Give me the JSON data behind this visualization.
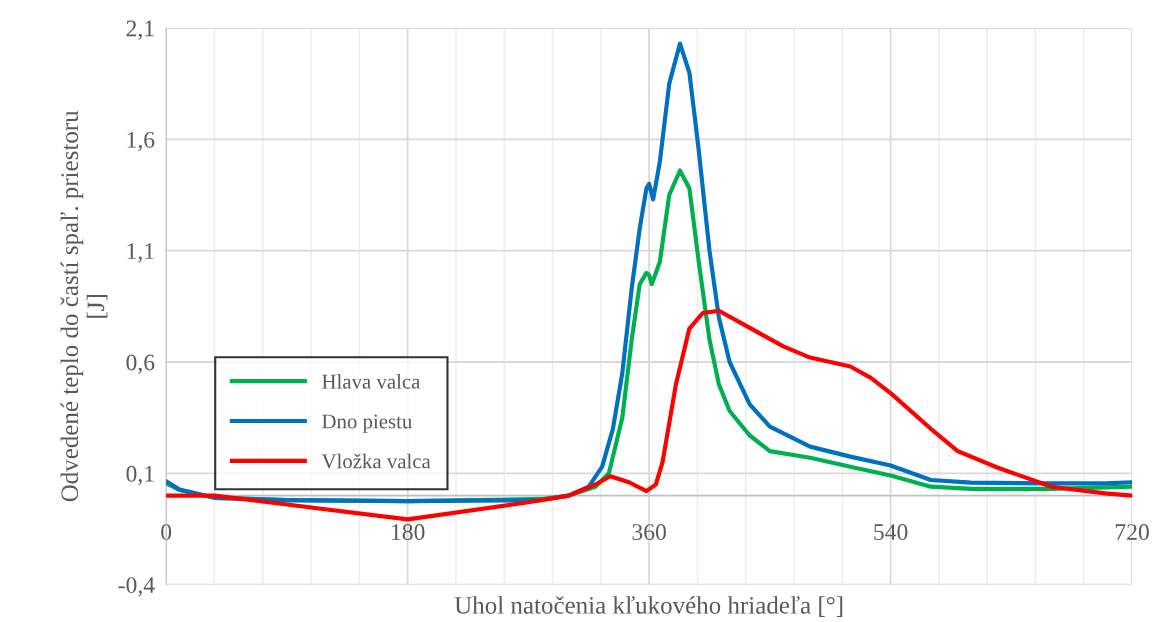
{
  "chart_data": {
    "type": "line",
    "xlabel": "Uhol natočenia kľukového hriadeľa [°]",
    "ylabel": "Odvedené teplo do častí spaľ. priestoru\n[J]",
    "xlim": [
      0,
      720
    ],
    "xticks": [
      0,
      180,
      360,
      540,
      720
    ],
    "ylim": [
      -0.4,
      2.1
    ],
    "yticks": [
      {
        "value": -0.4,
        "label": "-0,4"
      },
      {
        "value": 0.1,
        "label": "0,1"
      },
      {
        "value": 0.6,
        "label": "0,6"
      },
      {
        "value": 1.1,
        "label": "1,1"
      },
      {
        "value": 1.6,
        "label": "1,6"
      },
      {
        "value": 2.1,
        "label": "2,1"
      }
    ],
    "grid": true,
    "legend": "left",
    "marker": "none",
    "line_style": "solid",
    "series": [
      {
        "name": "Hlava valca",
        "color": "#00b050",
        "x": [
          0,
          10,
          36,
          90,
          180,
          280,
          300,
          320,
          330,
          340,
          347,
          353,
          358,
          360,
          362,
          368,
          375,
          383,
          390,
          397,
          405,
          412,
          420,
          435,
          450,
          480,
          510,
          540,
          570,
          600,
          660,
          720
        ],
        "values": [
          0.055,
          0.025,
          -0.01,
          -0.02,
          -0.025,
          -0.015,
          0.0,
          0.04,
          0.1,
          0.35,
          0.7,
          0.95,
          1.0,
          0.99,
          0.95,
          1.05,
          1.35,
          1.46,
          1.38,
          1.05,
          0.7,
          0.5,
          0.38,
          0.27,
          0.2,
          0.17,
          0.13,
          0.09,
          0.04,
          0.03,
          0.03,
          0.04
        ]
      },
      {
        "name": "Dno piestu",
        "color": "#0070c0",
        "x": [
          0,
          10,
          36,
          90,
          180,
          280,
          300,
          315,
          325,
          333,
          340,
          347,
          353,
          358,
          360,
          363,
          368,
          375,
          383,
          390,
          397,
          405,
          412,
          420,
          435,
          450,
          480,
          510,
          540,
          570,
          600,
          660,
          700,
          720
        ],
        "values": [
          0.064,
          0.027,
          -0.01,
          -0.02,
          -0.025,
          -0.02,
          0.0,
          0.04,
          0.13,
          0.3,
          0.55,
          0.93,
          1.2,
          1.38,
          1.4,
          1.33,
          1.5,
          1.85,
          2.03,
          1.9,
          1.55,
          1.1,
          0.8,
          0.6,
          0.41,
          0.31,
          0.22,
          0.175,
          0.135,
          0.07,
          0.058,
          0.055,
          0.055,
          0.06
        ]
      },
      {
        "name": "Vložka valca",
        "color": "#ff0000",
        "x": [
          0,
          36,
          90,
          180,
          270,
          300,
          320,
          331,
          345,
          358,
          365,
          370,
          380,
          390,
          400,
          412,
          430,
          460,
          480,
          510,
          525,
          540,
          570,
          590,
          620,
          660,
          700,
          720
        ],
        "values": [
          0.0,
          0.0,
          -0.04,
          -0.107,
          -0.03,
          0.0,
          0.05,
          0.087,
          0.06,
          0.02,
          0.05,
          0.15,
          0.5,
          0.75,
          0.82,
          0.83,
          0.77,
          0.67,
          0.62,
          0.58,
          0.53,
          0.46,
          0.3,
          0.2,
          0.125,
          0.04,
          0.01,
          0.0
        ]
      }
    ]
  }
}
